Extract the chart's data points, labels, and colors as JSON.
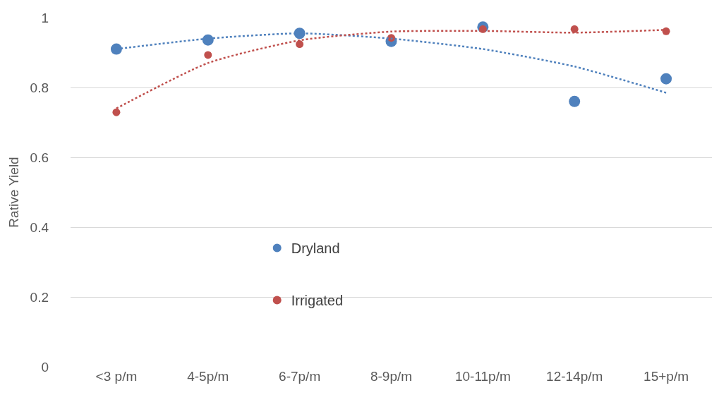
{
  "chart_data": {
    "type": "scatter",
    "ylabel": "Rative Yield",
    "categories": [
      "<3 p/m",
      "4-5p/m",
      "6-7p/m",
      "8-9p/m",
      "10-11p/m",
      "12-14p/m",
      "15+p/m"
    ],
    "series": [
      {
        "name": "Dryland",
        "color": "#4f81bd",
        "values": [
          0.91,
          0.936,
          0.955,
          0.932,
          0.973,
          0.76,
          0.825
        ]
      },
      {
        "name": "Irrigated",
        "color": "#c0504d",
        "values": [
          0.729,
          0.893,
          0.924,
          0.942,
          0.967,
          0.967,
          0.961
        ]
      },
      {
        "type": "line",
        "line_style": "dotted",
        "marker": "none",
        "color": "#4f81bd",
        "values": [
          0.91,
          0.94,
          0.955,
          0.94,
          0.91,
          0.86,
          0.785
        ]
      },
      {
        "type": "line",
        "line_style": "dotted",
        "marker": "none",
        "color": "#c0504d",
        "values": [
          0.74,
          0.87,
          0.935,
          0.96,
          0.962,
          0.957,
          0.965
        ]
      }
    ],
    "ylim": [
      0,
      1
    ],
    "yticks": [
      0,
      0.2,
      0.4,
      0.6,
      0.8,
      1
    ],
    "grid": "y",
    "legend": "bottom left",
    "marker": "circle"
  }
}
